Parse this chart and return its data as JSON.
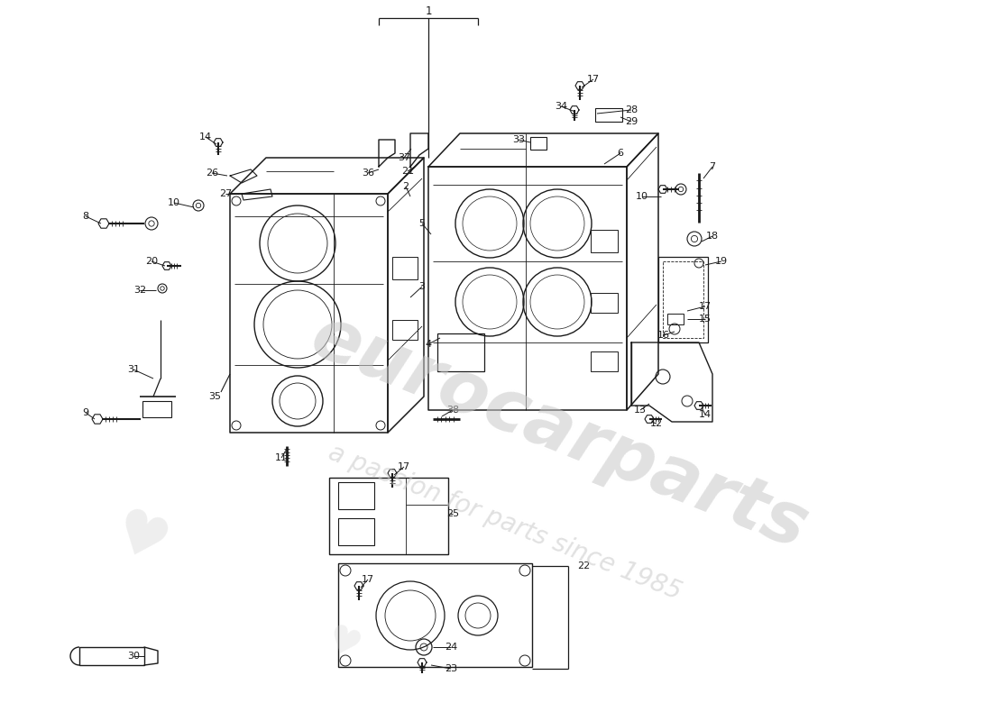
{
  "bg_color": "#ffffff",
  "line_color": "#1a1a1a",
  "text_color": "#1a1a1a",
  "figsize": [
    11.0,
    8.0
  ],
  "dpi": 100,
  "wm1": "eurocarparts",
  "wm2": "a passion for parts since 1985"
}
